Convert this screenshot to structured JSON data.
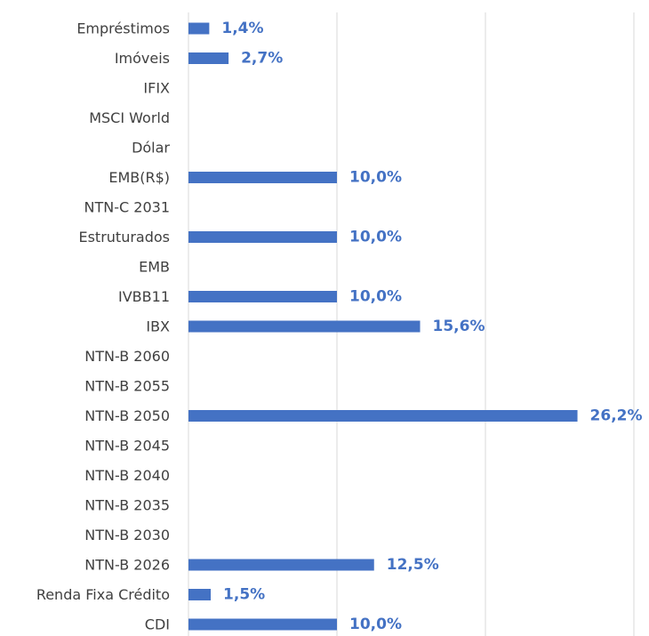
{
  "colors": {
    "bar": "#4472C4",
    "data_label": "#4472C4",
    "category_label": "#404040",
    "gridline": "#D9D9D9"
  },
  "chart_data": {
    "type": "bar",
    "orientation": "horizontal",
    "categories": [
      "Empréstimos",
      "Imóveis",
      "IFIX",
      "MSCI World",
      "Dólar",
      "EMB(R$)",
      "NTN-C 2031",
      "Estruturados",
      "EMB",
      "IVBB11",
      "IBX",
      "NTN-B 2060",
      "NTN-B 2055",
      "NTN-B 2050",
      "NTN-B 2045",
      "NTN-B 2040",
      "NTN-B 2035",
      "NTN-B 2030",
      "NTN-B 2026",
      "Renda Fixa Crédito",
      "CDI"
    ],
    "values": [
      1.4,
      2.7,
      0,
      0,
      0,
      10.0,
      0,
      10.0,
      0,
      10.0,
      15.6,
      0,
      0,
      26.2,
      0,
      0,
      0,
      0,
      12.5,
      1.5,
      10.0
    ],
    "data_labels": [
      "1,4%",
      "2,7%",
      "",
      "",
      "",
      "10,0%",
      "",
      "10,0%",
      "",
      "10,0%",
      "15,6%",
      "",
      "",
      "26,2%",
      "",
      "",
      "",
      "",
      "12,5%",
      "1,5%",
      "10,0%"
    ],
    "xlim": [
      0,
      30
    ],
    "gridlines_at": [
      0,
      10,
      20,
      30
    ],
    "grid": true,
    "legend": "none",
    "title": "",
    "xlabel": "",
    "ylabel": ""
  }
}
